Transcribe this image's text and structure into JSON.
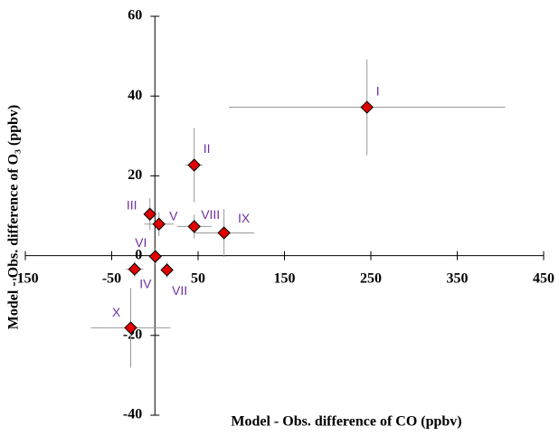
{
  "chart_data": {
    "type": "scatter",
    "x_label": "Model - Obs. difference of CO (ppbv)",
    "y_label": "Model - Obs. difference of O₃ (ppbv)",
    "xlim": [
      -150,
      450
    ],
    "xticks": [
      -150,
      -50,
      50,
      150,
      250,
      350,
      450
    ],
    "ylim": [
      -40,
      60
    ],
    "yticks": [
      -40,
      -20,
      0,
      20,
      40,
      60
    ],
    "series": [
      {
        "color": "#e00000",
        "label_color": "#7030a0",
        "error_color": "#999999",
        "labels": [
          "I",
          "II",
          "III",
          "V",
          "VIII",
          "IX",
          "VI",
          "IV",
          "VII",
          "X"
        ],
        "x": [
          245.5,
          45.5,
          -5.8,
          4.7,
          45.5,
          80,
          0.5,
          -23.5,
          14,
          -28
        ],
        "y": [
          37.2,
          22.7,
          10.4,
          7.9,
          7.3,
          5.7,
          -0.2,
          -3.4,
          -3.6,
          -18.1
        ],
        "xerr": [
          160,
          10,
          6,
          17,
          20,
          35,
          3,
          10,
          4,
          46
        ],
        "yerr": [
          12,
          9.3,
          4,
          3,
          3,
          6,
          2,
          2,
          2,
          10
        ]
      }
    ]
  }
}
